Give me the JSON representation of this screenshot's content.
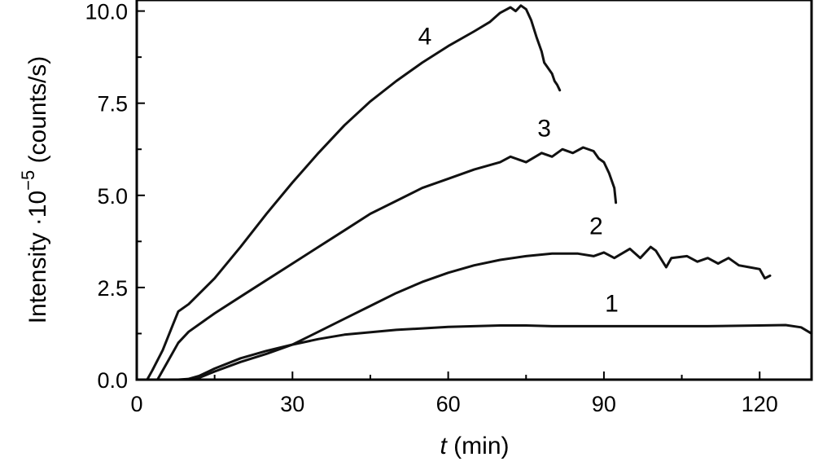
{
  "chart_data": {
    "type": "line",
    "xlabel_italic": "t",
    "xlabel_rest": " (min)",
    "ylabel_main": "Intensity ·10",
    "ylabel_exp": "−5",
    "ylabel_unit": " (counts/s)",
    "xlim": [
      0,
      130
    ],
    "ylim": [
      0,
      10.3
    ],
    "xticks": [
      0,
      30,
      60,
      90,
      120
    ],
    "xtick_labels": [
      "0",
      "30",
      "60",
      "90",
      "120"
    ],
    "yticks": [
      0,
      2.5,
      5,
      7.5,
      10
    ],
    "ytick_labels": [
      "0.0",
      "2.5",
      "5.0",
      "7.5",
      "10.0"
    ],
    "grid": false,
    "legend": "none",
    "line_color": "#111111",
    "series": [
      {
        "name": "1",
        "label_pos": [
          91.5,
          1.85
        ],
        "x": [
          0,
          8,
          10,
          12,
          15,
          20,
          25,
          30,
          35,
          40,
          50,
          60,
          70,
          75,
          80,
          90,
          100,
          110,
          120,
          125,
          128,
          130
        ],
        "y": [
          0,
          0,
          0.02,
          0.1,
          0.3,
          0.58,
          0.78,
          0.95,
          1.1,
          1.22,
          1.35,
          1.43,
          1.47,
          1.47,
          1.45,
          1.45,
          1.45,
          1.45,
          1.47,
          1.48,
          1.42,
          1.25
        ]
      },
      {
        "name": "2",
        "label_pos": [
          88.5,
          3.95
        ],
        "x": [
          0,
          9,
          12,
          15,
          20,
          25,
          30,
          35,
          40,
          45,
          50,
          55,
          60,
          65,
          70,
          75,
          80,
          85,
          88,
          90,
          92,
          95,
          97,
          99,
          100,
          102,
          103,
          106,
          108,
          110,
          112,
          114,
          116,
          118,
          120,
          121,
          122
        ],
        "y": [
          0,
          0,
          0.05,
          0.22,
          0.48,
          0.7,
          0.95,
          1.3,
          1.65,
          2.0,
          2.35,
          2.65,
          2.9,
          3.1,
          3.25,
          3.35,
          3.42,
          3.42,
          3.35,
          3.45,
          3.3,
          3.55,
          3.3,
          3.6,
          3.5,
          3.05,
          3.3,
          3.35,
          3.2,
          3.3,
          3.15,
          3.3,
          3.1,
          3.05,
          3.0,
          2.75,
          2.82
        ]
      },
      {
        "name": "3",
        "label_pos": [
          78.5,
          6.6
        ],
        "x": [
          0,
          4,
          6,
          8,
          10,
          15,
          20,
          25,
          30,
          35,
          40,
          45,
          50,
          55,
          60,
          65,
          70,
          72,
          75,
          78,
          80,
          82,
          84,
          86,
          88,
          89,
          90,
          91,
          92,
          92.3
        ],
        "y": [
          0,
          0,
          0.5,
          1.0,
          1.3,
          1.8,
          2.25,
          2.7,
          3.15,
          3.6,
          4.05,
          4.5,
          4.85,
          5.2,
          5.45,
          5.7,
          5.9,
          6.05,
          5.9,
          6.15,
          6.05,
          6.25,
          6.15,
          6.3,
          6.2,
          6.0,
          5.9,
          5.6,
          5.2,
          4.8
        ]
      },
      {
        "name": "4",
        "label_pos": [
          55.5,
          9.1
        ],
        "x": [
          0,
          2,
          3,
          5,
          7,
          8,
          10,
          15,
          20,
          25,
          30,
          35,
          40,
          45,
          50,
          55,
          60,
          65,
          68,
          70,
          72,
          73,
          74,
          75,
          76,
          77,
          78,
          78.5,
          79,
          80,
          80.5,
          81,
          81.5
        ],
        "y": [
          0,
          0,
          0.25,
          0.8,
          1.5,
          1.85,
          2.05,
          2.75,
          3.6,
          4.5,
          5.35,
          6.15,
          6.9,
          7.55,
          8.1,
          8.6,
          9.05,
          9.45,
          9.7,
          9.95,
          10.1,
          10.0,
          10.15,
          10.05,
          9.75,
          9.3,
          8.9,
          8.6,
          8.5,
          8.3,
          8.1,
          8.0,
          7.85
        ]
      }
    ]
  }
}
